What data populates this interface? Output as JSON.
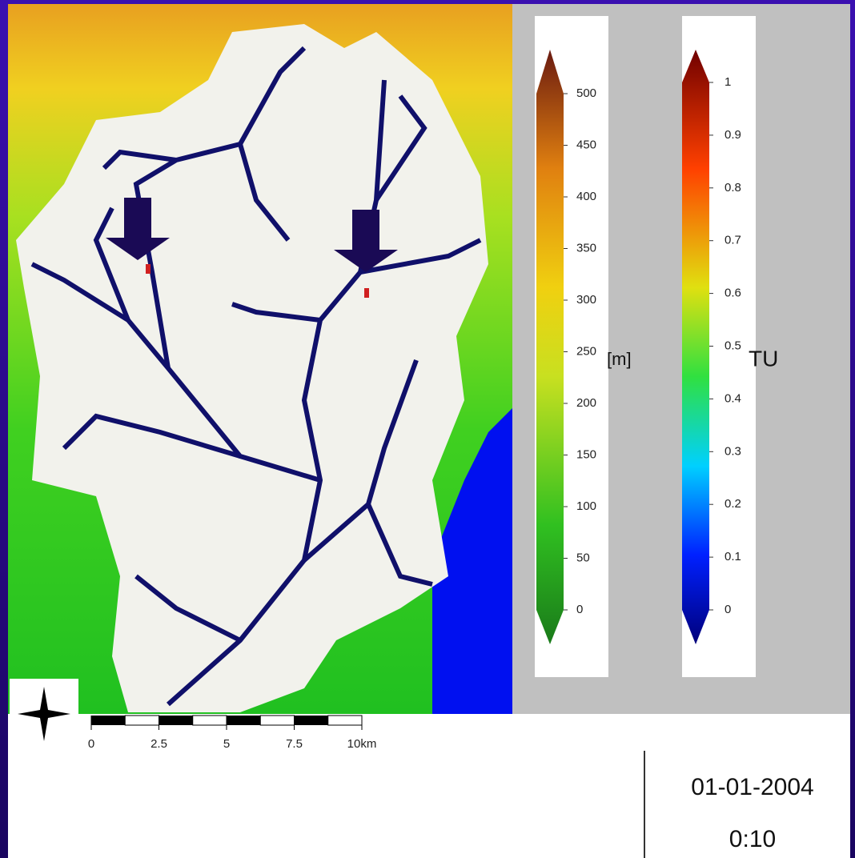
{
  "elevation_legend": {
    "unit": "[m]",
    "ticks": [
      0,
      50,
      100,
      150,
      200,
      250,
      300,
      350,
      400,
      450,
      500
    ]
  },
  "tracer_legend": {
    "unit": "TU",
    "ticks": [
      0,
      0.1,
      0.2,
      0.3,
      0.4,
      0.5,
      0.6,
      0.7,
      0.8,
      0.9,
      1
    ]
  },
  "scale_bar": {
    "ticks": [
      0,
      2.5,
      5,
      7.5,
      {
        "value": 10,
        "label": "10km"
      }
    ]
  },
  "timestamp": {
    "date": "01-01-2004",
    "time": "0:10"
  }
}
